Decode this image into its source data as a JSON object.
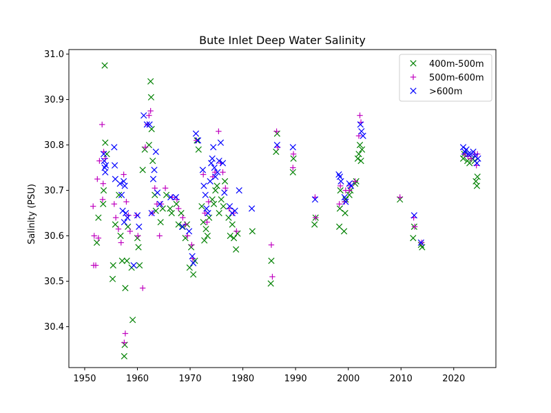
{
  "chart_data": {
    "type": "scatter",
    "title": "Bute Inlet Deep Water Salinity",
    "xlabel": "",
    "ylabel": "Salinity (PSU)",
    "xlim": [
      1947,
      2028
    ],
    "ylim": [
      30.31,
      31.01
    ],
    "xticks": [
      1950,
      1960,
      1970,
      1980,
      1990,
      2000,
      2010,
      2020
    ],
    "yticks": [
      "30.4",
      "30.5",
      "30.6",
      "30.7",
      "30.8",
      "30.9",
      "31.0"
    ],
    "grid": false,
    "legend_position": "top-right",
    "series": [
      {
        "name": "400m-500m",
        "marker": "x",
        "color": "#008000",
        "points": [
          [
            1952.3,
            30.585
          ],
          [
            1952.6,
            30.64
          ],
          [
            1953.5,
            30.67
          ],
          [
            1953.6,
            30.7
          ],
          [
            1953.8,
            30.975
          ],
          [
            1953.9,
            30.805
          ],
          [
            1954.2,
            30.78
          ],
          [
            1955.3,
            30.505
          ],
          [
            1955.4,
            30.535
          ],
          [
            1955.8,
            30.625
          ],
          [
            1956.5,
            30.69
          ],
          [
            1956.8,
            30.6
          ],
          [
            1957.1,
            30.545
          ],
          [
            1957.5,
            30.335
          ],
          [
            1957.6,
            30.36
          ],
          [
            1957.7,
            30.485
          ],
          [
            1958.0,
            30.545
          ],
          [
            1958.2,
            30.62
          ],
          [
            1958.9,
            30.53
          ],
          [
            1959.1,
            30.415
          ],
          [
            1960.0,
            30.595
          ],
          [
            1960.2,
            30.575
          ],
          [
            1960.4,
            30.535
          ],
          [
            1961.0,
            30.745
          ],
          [
            1961.4,
            30.79
          ],
          [
            1962.2,
            30.8
          ],
          [
            1962.5,
            30.94
          ],
          [
            1962.6,
            30.905
          ],
          [
            1962.7,
            30.835
          ],
          [
            1962.9,
            30.765
          ],
          [
            1963.3,
            30.69
          ],
          [
            1963.5,
            30.655
          ],
          [
            1964.4,
            30.63
          ],
          [
            1964.8,
            30.66
          ],
          [
            1965.5,
            30.69
          ],
          [
            1966.2,
            30.66
          ],
          [
            1966.5,
            30.65
          ],
          [
            1967.4,
            30.67
          ],
          [
            1967.8,
            30.625
          ],
          [
            1968.3,
            30.65
          ],
          [
            1968.6,
            30.62
          ],
          [
            1969.1,
            30.595
          ],
          [
            1969.4,
            30.625
          ],
          [
            1969.9,
            30.53
          ],
          [
            1970.2,
            30.575
          ],
          [
            1970.6,
            30.515
          ],
          [
            1970.9,
            30.545
          ],
          [
            1971.3,
            30.81
          ],
          [
            1971.6,
            30.79
          ],
          [
            1972.2,
            30.665
          ],
          [
            1972.5,
            30.63
          ],
          [
            1972.7,
            30.59
          ],
          [
            1973.0,
            30.615
          ],
          [
            1973.3,
            30.6
          ],
          [
            1973.6,
            30.64
          ],
          [
            1974.2,
            30.68
          ],
          [
            1974.5,
            30.67
          ],
          [
            1974.8,
            30.7
          ],
          [
            1975.1,
            30.71
          ],
          [
            1975.5,
            30.65
          ],
          [
            1975.9,
            30.68
          ],
          [
            1976.3,
            30.665
          ],
          [
            1976.6,
            30.72
          ],
          [
            1977.3,
            30.64
          ],
          [
            1977.6,
            30.6
          ],
          [
            1978.0,
            30.625
          ],
          [
            1978.3,
            30.595
          ],
          [
            1978.7,
            30.57
          ],
          [
            1979.0,
            30.605
          ],
          [
            1981.8,
            30.61
          ],
          [
            1985.3,
            30.495
          ],
          [
            1985.4,
            30.545
          ],
          [
            1986.3,
            30.785
          ],
          [
            1986.5,
            30.825
          ],
          [
            1989.5,
            30.74
          ],
          [
            1989.6,
            30.77
          ],
          [
            1993.6,
            30.625
          ],
          [
            1993.8,
            30.64
          ],
          [
            1998.3,
            30.62
          ],
          [
            1998.4,
            30.66
          ],
          [
            1998.5,
            30.7
          ],
          [
            1999.2,
            30.61
          ],
          [
            1999.4,
            30.65
          ],
          [
            1999.5,
            30.68
          ],
          [
            2000.2,
            30.69
          ],
          [
            2000.4,
            30.7
          ],
          [
            2001.3,
            30.715
          ],
          [
            2001.5,
            30.72
          ],
          [
            2001.8,
            30.77
          ],
          [
            2002.0,
            30.78
          ],
          [
            2002.2,
            30.8
          ],
          [
            2002.4,
            30.765
          ],
          [
            2002.6,
            30.79
          ],
          [
            2009.8,
            30.68
          ],
          [
            2012.3,
            30.595
          ],
          [
            2012.5,
            30.62
          ],
          [
            2013.8,
            30.58
          ],
          [
            2014.0,
            30.575
          ],
          [
            2021.8,
            30.77
          ],
          [
            2022.0,
            30.78
          ],
          [
            2022.6,
            30.765
          ],
          [
            2023.0,
            30.76
          ],
          [
            2023.5,
            30.77
          ],
          [
            2024.0,
            30.765
          ],
          [
            2024.2,
            30.72
          ],
          [
            2024.4,
            30.71
          ],
          [
            2024.5,
            30.73
          ]
        ]
      },
      {
        "name": "500m-600m",
        "marker": "+",
        "color": "#bf00bf",
        "points": [
          [
            1951.6,
            30.665
          ],
          [
            1951.7,
            30.535
          ],
          [
            1951.8,
            30.6
          ],
          [
            1952.1,
            30.535
          ],
          [
            1952.4,
            30.725
          ],
          [
            1952.6,
            30.595
          ],
          [
            1952.8,
            30.765
          ],
          [
            1953.3,
            30.845
          ],
          [
            1953.4,
            30.68
          ],
          [
            1953.5,
            30.715
          ],
          [
            1953.6,
            30.785
          ],
          [
            1953.9,
            30.77
          ],
          [
            1955.6,
            30.67
          ],
          [
            1955.9,
            30.64
          ],
          [
            1956.4,
            30.615
          ],
          [
            1956.9,
            30.585
          ],
          [
            1957.4,
            30.735
          ],
          [
            1957.5,
            30.365
          ],
          [
            1957.7,
            30.385
          ],
          [
            1957.9,
            30.675
          ],
          [
            1958.3,
            30.645
          ],
          [
            1958.6,
            30.61
          ],
          [
            1959.8,
            30.645
          ],
          [
            1960.1,
            30.6
          ],
          [
            1961.0,
            30.485
          ],
          [
            1961.5,
            30.795
          ],
          [
            1961.9,
            30.845
          ],
          [
            1962.2,
            30.865
          ],
          [
            1962.5,
            30.875
          ],
          [
            1962.8,
            30.65
          ],
          [
            1963.3,
            30.705
          ],
          [
            1963.7,
            30.67
          ],
          [
            1964.2,
            30.6
          ],
          [
            1964.5,
            30.67
          ],
          [
            1965.3,
            30.705
          ],
          [
            1966.6,
            30.685
          ],
          [
            1967.5,
            30.68
          ],
          [
            1967.8,
            30.66
          ],
          [
            1968.6,
            30.64
          ],
          [
            1969.1,
            30.625
          ],
          [
            1969.5,
            30.6
          ],
          [
            1970.3,
            30.58
          ],
          [
            1970.5,
            30.55
          ],
          [
            1971.2,
            30.81
          ],
          [
            1972.5,
            30.735
          ],
          [
            1972.8,
            30.65
          ],
          [
            1973.2,
            30.63
          ],
          [
            1973.5,
            30.675
          ],
          [
            1974.3,
            30.73
          ],
          [
            1974.7,
            30.74
          ],
          [
            1975.4,
            30.83
          ],
          [
            1975.8,
            30.76
          ],
          [
            1976.2,
            30.74
          ],
          [
            1976.7,
            30.705
          ],
          [
            1977.4,
            30.66
          ],
          [
            1978.2,
            30.65
          ],
          [
            1978.8,
            30.61
          ],
          [
            1985.4,
            30.58
          ],
          [
            1985.6,
            30.51
          ],
          [
            1986.4,
            30.83
          ],
          [
            1986.6,
            30.795
          ],
          [
            1989.5,
            30.75
          ],
          [
            1989.6,
            30.78
          ],
          [
            1993.7,
            30.685
          ],
          [
            1993.8,
            30.64
          ],
          [
            1998.3,
            30.67
          ],
          [
            1998.5,
            30.71
          ],
          [
            1999.3,
            30.675
          ],
          [
            1999.5,
            30.7
          ],
          [
            2000.2,
            30.7
          ],
          [
            2000.4,
            30.71
          ],
          [
            2001.3,
            30.72
          ],
          [
            2002.0,
            30.82
          ],
          [
            2002.2,
            30.865
          ],
          [
            2002.4,
            30.85
          ],
          [
            2009.8,
            30.685
          ],
          [
            2012.4,
            30.64
          ],
          [
            2012.6,
            30.62
          ],
          [
            2013.9,
            30.585
          ],
          [
            2022.0,
            30.78
          ],
          [
            2022.7,
            30.775
          ],
          [
            2023.3,
            30.77
          ],
          [
            2024.0,
            30.78
          ],
          [
            2024.3,
            30.755
          ],
          [
            2024.5,
            30.78
          ]
        ]
      },
      {
        "name": ">600m",
        "marker": "x",
        "color": "#0000ff",
        "points": [
          [
            1953.6,
            30.78
          ],
          [
            1953.7,
            30.765
          ],
          [
            1953.8,
            30.75
          ],
          [
            1953.9,
            30.74
          ],
          [
            1954.0,
            30.755
          ],
          [
            1955.6,
            30.795
          ],
          [
            1955.7,
            30.755
          ],
          [
            1955.8,
            30.725
          ],
          [
            1956.7,
            30.715
          ],
          [
            1957.0,
            30.69
          ],
          [
            1957.2,
            30.655
          ],
          [
            1957.4,
            30.72
          ],
          [
            1957.5,
            30.63
          ],
          [
            1957.6,
            30.71
          ],
          [
            1957.8,
            30.65
          ],
          [
            1958.1,
            30.64
          ],
          [
            1959.3,
            30.535
          ],
          [
            1960.0,
            30.645
          ],
          [
            1960.3,
            30.62
          ],
          [
            1961.2,
            30.865
          ],
          [
            1961.8,
            30.845
          ],
          [
            1962.3,
            30.845
          ],
          [
            1962.7,
            30.65
          ],
          [
            1963.0,
            30.725
          ],
          [
            1963.2,
            30.745
          ],
          [
            1963.5,
            30.785
          ],
          [
            1963.8,
            30.695
          ],
          [
            1964.3,
            30.67
          ],
          [
            1966.3,
            30.685
          ],
          [
            1967.3,
            30.685
          ],
          [
            1968.5,
            30.62
          ],
          [
            1969.8,
            30.61
          ],
          [
            1970.4,
            30.555
          ],
          [
            1970.6,
            30.54
          ],
          [
            1971.1,
            30.825
          ],
          [
            1971.5,
            30.81
          ],
          [
            1972.4,
            30.745
          ],
          [
            1972.6,
            30.71
          ],
          [
            1972.9,
            30.69
          ],
          [
            1973.1,
            30.66
          ],
          [
            1973.4,
            30.65
          ],
          [
            1973.8,
            30.72
          ],
          [
            1974.0,
            30.76
          ],
          [
            1974.2,
            30.77
          ],
          [
            1974.4,
            30.795
          ],
          [
            1974.6,
            30.75
          ],
          [
            1974.8,
            30.73
          ],
          [
            1975.2,
            30.74
          ],
          [
            1975.5,
            30.765
          ],
          [
            1975.8,
            30.805
          ],
          [
            1976.2,
            30.76
          ],
          [
            1976.5,
            30.695
          ],
          [
            1977.5,
            30.665
          ],
          [
            1978.0,
            30.65
          ],
          [
            1978.5,
            30.655
          ],
          [
            1979.3,
            30.7
          ],
          [
            1981.7,
            30.66
          ],
          [
            1986.5,
            30.8
          ],
          [
            1989.5,
            30.795
          ],
          [
            1993.7,
            30.68
          ],
          [
            1998.2,
            30.735
          ],
          [
            1998.4,
            30.73
          ],
          [
            1998.6,
            30.72
          ],
          [
            1999.3,
            30.685
          ],
          [
            1999.5,
            30.675
          ],
          [
            2000.2,
            30.715
          ],
          [
            2000.5,
            30.71
          ],
          [
            2002.3,
            30.845
          ],
          [
            2002.5,
            30.83
          ],
          [
            2002.8,
            30.82
          ],
          [
            2012.5,
            30.645
          ],
          [
            2013.8,
            30.585
          ],
          [
            2021.8,
            30.795
          ],
          [
            2022.1,
            30.785
          ],
          [
            2022.4,
            30.79
          ],
          [
            2022.8,
            30.78
          ],
          [
            2023.2,
            30.78
          ],
          [
            2023.7,
            30.785
          ],
          [
            2024.1,
            30.775
          ],
          [
            2024.4,
            30.76
          ],
          [
            2024.6,
            30.77
          ]
        ]
      }
    ]
  }
}
